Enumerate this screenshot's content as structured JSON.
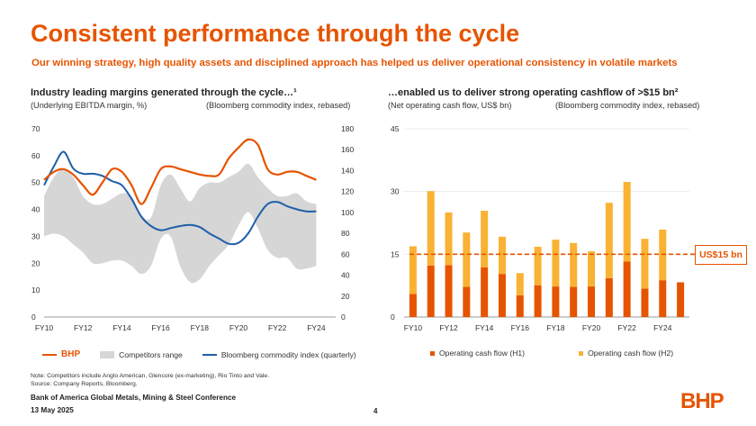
{
  "title": "Consistent performance through the cycle",
  "subtitle": "Our winning strategy, high quality assets and disciplined approach has helped us deliver operational consistency in volatile markets",
  "left": {
    "heading": "Industry leading margins generated through the cycle…¹",
    "sub_left": "(Underlying EBITDA margin, %)",
    "sub_right": "(Bloomberg commodity index, rebased)",
    "legend": {
      "bhp": "BHP",
      "range": "Competitors range",
      "index": "Bloomberg commodity index (quarterly)"
    }
  },
  "right": {
    "heading": "…enabled us to deliver strong operating cashflow of >$15 bn²",
    "sub_left": "(Net operating cash flow, US$ bn)",
    "sub_right": "(Bloomberg commodity index, rebased)",
    "callout": "US$15 bn",
    "legend": {
      "h1": "Operating cash flow (H1)",
      "h2": "Operating cash flow (H2)"
    }
  },
  "notes": {
    "line1": "Note: Competitors include Anglo American, Glencore (ex-marketing), Rio Tinto and Vale.",
    "line2": "Source: Company Reports, Bloomberg."
  },
  "footer": {
    "conference": "Bank of America Global Metals, Mining & Steel Conference",
    "date": "13 May 2025"
  },
  "page_number": "4",
  "logo": "BHP",
  "colors": {
    "brand": "#E65400",
    "bhp_line": "#E65400",
    "index_line": "#1F5FA8",
    "range": "#D6D6D6",
    "h1": "#E65400",
    "h2": "#F9B233",
    "grid": "#E6E6E6"
  },
  "chart_data": [
    {
      "type": "line",
      "title": "Industry leading margins generated through the cycle…",
      "x": [
        2010,
        2010.5,
        2011,
        2011.5,
        2012,
        2012.5,
        2013,
        2013.5,
        2014,
        2014.5,
        2015,
        2015.5,
        2016,
        2016.5,
        2017,
        2017.5,
        2018,
        2018.5,
        2019,
        2019.5,
        2020,
        2020.5,
        2021,
        2021.5,
        2022,
        2022.5,
        2023,
        2023.5,
        2024,
        2024.5,
        2025
      ],
      "x_tick_labels": [
        "FY10",
        "FY12",
        "FY14",
        "FY16",
        "FY18",
        "FY20",
        "FY22",
        "FY24"
      ],
      "x_tick_values": [
        2010,
        2012,
        2014,
        2016,
        2018,
        2020,
        2022,
        2024
      ],
      "ylim_left": [
        0,
        70
      ],
      "yticks_left": [
        0,
        10,
        20,
        30,
        40,
        50,
        60,
        70
      ],
      "ylim_right": [
        0,
        180
      ],
      "yticks_right": [
        0,
        20,
        40,
        60,
        80,
        100,
        120,
        140,
        160,
        180
      ],
      "series": [
        {
          "name": "BHP",
          "axis": "left",
          "values": [
            51,
            54,
            55,
            53,
            49,
            45.5,
            50,
            55,
            54,
            49,
            42,
            48,
            55,
            56,
            55,
            54,
            53,
            52.5,
            53,
            59,
            63,
            66,
            64,
            55,
            53,
            54,
            54,
            52.5,
            51,
            null,
            null
          ]
        },
        {
          "name": "Competitors range (low)",
          "axis": "left",
          "values": [
            30,
            31,
            30,
            27,
            24,
            20,
            20,
            21,
            21,
            19,
            16,
            19,
            29,
            30,
            19,
            13,
            14,
            19,
            23,
            27,
            34,
            39,
            33,
            25,
            22,
            22,
            18,
            18,
            19,
            null,
            null
          ]
        },
        {
          "name": "Competitors range (high)",
          "axis": "left",
          "values": [
            45,
            52,
            55,
            52,
            45,
            42,
            42,
            44,
            46,
            45,
            38,
            37,
            49,
            53,
            48,
            43,
            48,
            50,
            50,
            52,
            54,
            57,
            52,
            48,
            45,
            45,
            46,
            43,
            42,
            null,
            null
          ]
        },
        {
          "name": "Bloomberg commodity index (quarterly)",
          "axis": "right",
          "values": [
            126,
            144,
            158,
            142,
            137,
            137,
            135,
            130,
            126,
            113,
            96,
            87,
            83,
            85,
            87,
            88,
            86,
            80,
            75,
            70,
            71,
            80,
            96,
            108,
            110,
            106,
            103,
            101,
            101,
            null,
            null
          ]
        }
      ]
    },
    {
      "type": "bar",
      "stacked": true,
      "title": "…enabled us to deliver strong operating cashflow of >$15 bn",
      "categories": [
        "FY10",
        "FY11",
        "FY12",
        "FY13",
        "FY14",
        "FY15",
        "FY16",
        "FY17",
        "FY18",
        "FY19",
        "FY20",
        "FY21",
        "FY22",
        "FY23",
        "FY24",
        "FY25"
      ],
      "x_tick_labels": [
        "FY10",
        "FY12",
        "FY14",
        "FY16",
        "FY18",
        "FY20",
        "FY22",
        "FY24"
      ],
      "ylim": [
        0,
        45
      ],
      "yticks": [
        0,
        15,
        30,
        45
      ],
      "reference_line": {
        "value": 15,
        "label": "US$15 bn"
      },
      "series": [
        {
          "name": "Operating cash flow (H1)",
          "values": [
            5.5,
            12.3,
            12.4,
            7.2,
            11.9,
            10.3,
            5.2,
            7.6,
            7.3,
            7.2,
            7.3,
            9.3,
            13.3,
            6.8,
            8.8,
            8.3
          ]
        },
        {
          "name": "Operating cash flow (H2)",
          "values": [
            11.4,
            17.8,
            12.6,
            13.0,
            13.5,
            8.9,
            5.3,
            9.2,
            11.2,
            10.5,
            8.4,
            18.0,
            19.0,
            11.9,
            12.1,
            0
          ]
        }
      ]
    }
  ]
}
